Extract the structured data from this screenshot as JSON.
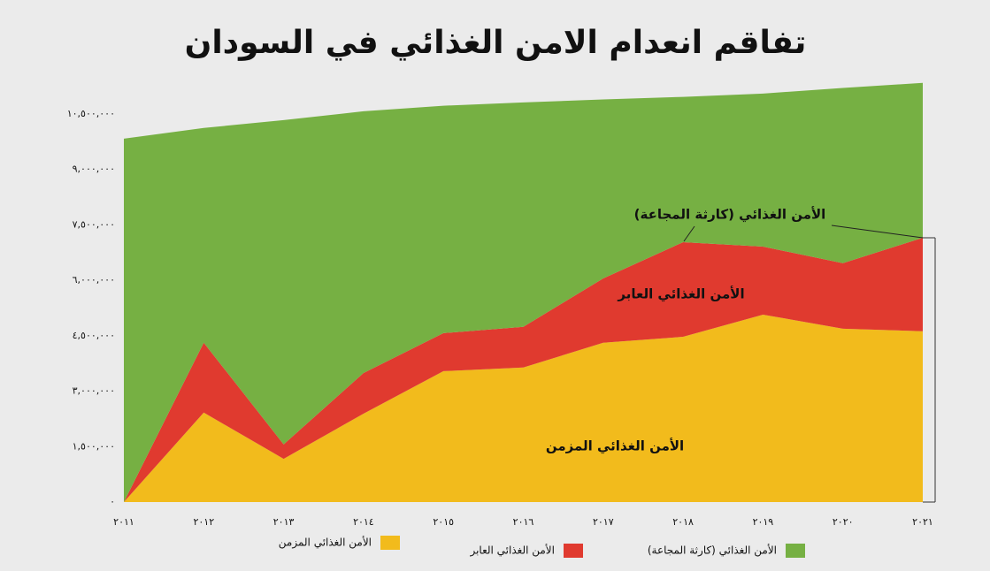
{
  "chart_data": {
    "type": "stacked_area",
    "title": "تفاقم انعدام الامن الغذائي في السودان",
    "categories": [
      "٢٠١١",
      "٢٠١٢",
      "٢٠١٣",
      "٢٠١٤",
      "٢٠١٥",
      "٢٠١٦",
      "٢٠١٧",
      "٢٠١٨",
      "٢٠١٩",
      "٢٠٢٠",
      "٢٠٢١"
    ],
    "series": [
      {
        "name": "الأمن الغذائي المزمن",
        "color": "#f2bb1c",
        "values": [
          0,
          2420000,
          1170000,
          2390000,
          3540000,
          3640000,
          4310000,
          4470000,
          5070000,
          4690000,
          4620000
        ]
      },
      {
        "name": "الأمن الغذائي العابر",
        "color": "#e03a2f",
        "values": [
          0,
          1890000,
          390000,
          1100000,
          1030000,
          1100000,
          1740000,
          2560000,
          1840000,
          1770000,
          2530000
        ]
      },
      {
        "name": "الأمن الغذائي (كارثة المجاعة)",
        "color": "#76b043",
        "values": [
          9830000,
          5810000,
          8770000,
          7080000,
          6150000,
          6070000,
          4840000,
          3930000,
          4140000,
          4740000,
          4190000
        ]
      }
    ],
    "ylim": [
      0,
      11500000
    ],
    "yticks": [
      {
        "value": 0,
        "label": "٠"
      },
      {
        "value": 1500000,
        "label": "١,٥٠٠,٠٠٠"
      },
      {
        "value": 3000000,
        "label": "٣,٠٠٠,٠٠٠"
      },
      {
        "value": 4500000,
        "label": "٤,٥٠٠,٠٠٠"
      },
      {
        "value": 6000000,
        "label": "٦,٠٠٠,٠٠٠"
      },
      {
        "value": 7500000,
        "label": "٧,٥٠٠,٠٠٠"
      },
      {
        "value": 9000000,
        "label": "٩,٠٠٠,٠٠٠"
      },
      {
        "value": 10500000,
        "label": "١٠,٥٠٠,٠٠٠"
      }
    ]
  }
}
